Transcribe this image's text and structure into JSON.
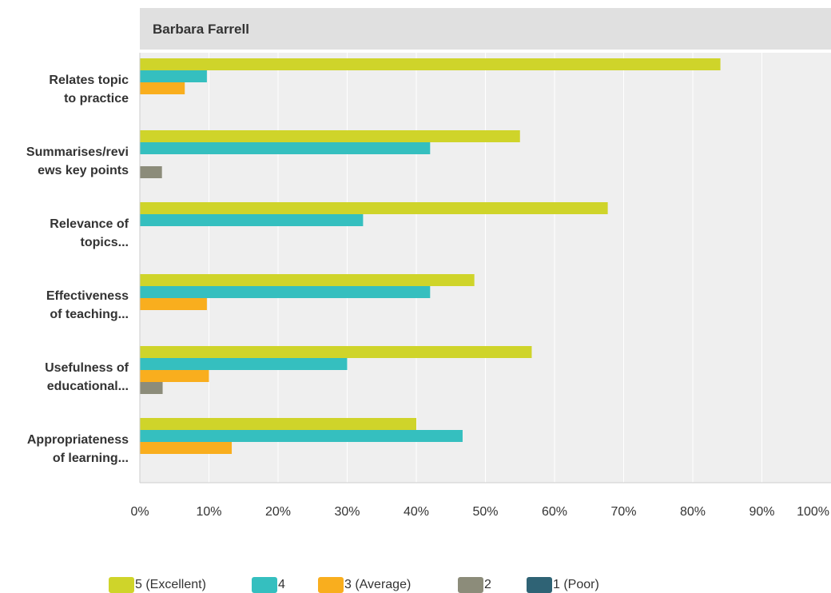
{
  "chart_data": {
    "type": "bar",
    "orientation": "horizontal",
    "title": "Barbara Farrell",
    "categories": [
      [
        "Relates topic",
        "to practice"
      ],
      [
        "Summarises/revi",
        "ews key points"
      ],
      [
        "Relevance of",
        "topics..."
      ],
      [
        "Effectiveness",
        "of teaching..."
      ],
      [
        "Usefulness of",
        "educational..."
      ],
      [
        "Appropriateness",
        "of learning..."
      ]
    ],
    "series": [
      {
        "name": "5 (Excellent)",
        "color": "#cfd42a",
        "values": [
          84,
          55,
          67.7,
          48.4,
          56.7,
          40
        ]
      },
      {
        "name": "4",
        "color": "#35bfbf",
        "values": [
          9.7,
          42,
          32.3,
          42,
          30,
          46.7
        ]
      },
      {
        "name": "3 (Average)",
        "color": "#f9ae1e",
        "values": [
          6.5,
          0,
          0,
          9.7,
          10,
          13.3
        ]
      },
      {
        "name": "2",
        "color": "#8c8c7a",
        "values": [
          0,
          3.2,
          0,
          0,
          3.3,
          0
        ]
      },
      {
        "name": "1 (Poor)",
        "color": "#2f6375",
        "values": [
          0,
          0,
          0,
          0,
          0,
          0
        ]
      }
    ],
    "xlim": [
      0,
      100
    ],
    "x_ticks": [
      "0%",
      "10%",
      "20%",
      "30%",
      "40%",
      "50%",
      "60%",
      "70%",
      "80%",
      "90%",
      "100%"
    ],
    "grid": true,
    "legend_position": "bottom"
  }
}
